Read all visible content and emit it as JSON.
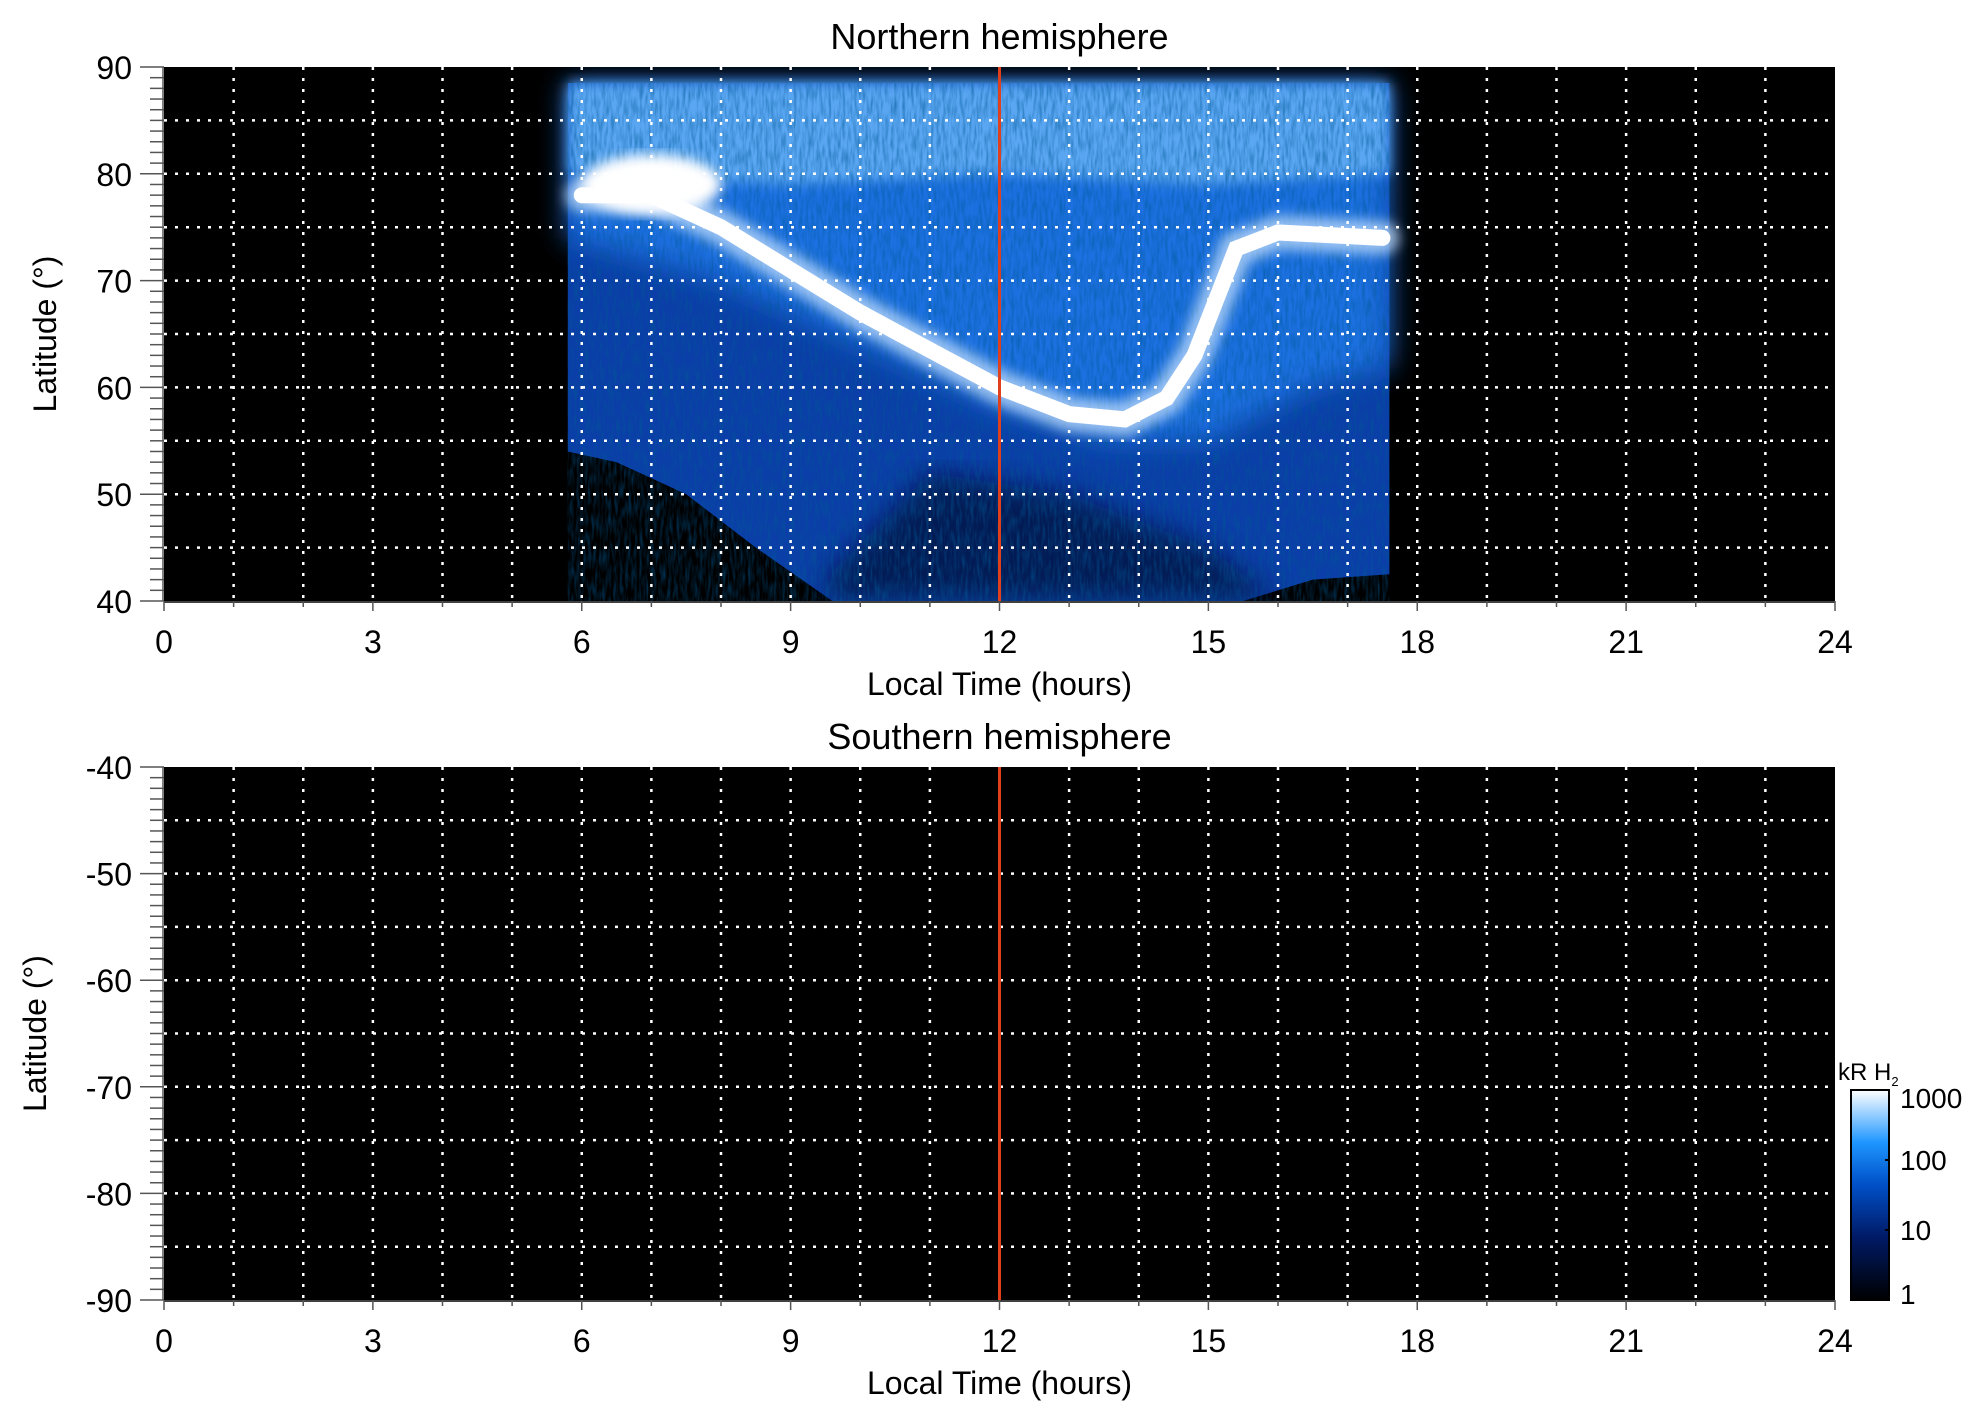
{
  "chart_data": [
    {
      "type": "heatmap",
      "title": "Northern hemisphere",
      "xlabel": "Local Time (hours)",
      "ylabel": "Latitude (°)",
      "xlim": [
        0,
        24
      ],
      "ylim": [
        40,
        90
      ],
      "xticks": [
        0,
        3,
        6,
        9,
        12,
        15,
        18,
        21,
        24
      ],
      "yticks": [
        40,
        50,
        60,
        70,
        80,
        90
      ],
      "grid": true,
      "marker_line_x": 12,
      "coverage_lt": [
        5.8,
        17.6
      ],
      "main_oval": [
        [
          6,
          78
        ],
        [
          7,
          78
        ],
        [
          8,
          75
        ],
        [
          9,
          71
        ],
        [
          10,
          67
        ],
        [
          11,
          63.5
        ],
        [
          12,
          60
        ],
        [
          13,
          57.5
        ],
        [
          13.8,
          57
        ],
        [
          14.4,
          59
        ],
        [
          14.8,
          63
        ],
        [
          15.1,
          68
        ],
        [
          15.4,
          73
        ],
        [
          16,
          74.5
        ],
        [
          17.5,
          74
        ]
      ],
      "has_data": true
    },
    {
      "type": "heatmap",
      "title": "Southern hemisphere",
      "xlabel": "Local Time (hours)",
      "ylabel": "Latitude (°)",
      "xlim": [
        0,
        24
      ],
      "ylim": [
        -90,
        -40
      ],
      "xticks": [
        0,
        3,
        6,
        9,
        12,
        15,
        18,
        21,
        24
      ],
      "yticks": [
        -40,
        -50,
        -60,
        -70,
        -80,
        -90
      ],
      "grid": true,
      "marker_line_x": 12,
      "has_data": false
    }
  ],
  "colorbar": {
    "label": "kR H",
    "label_sub": "2",
    "scale": "log",
    "range": [
      1,
      1000
    ],
    "ticks": [
      "1",
      "10",
      "100",
      "1000"
    ],
    "colors": [
      "#000000",
      "#001a66",
      "#0050c8",
      "#1e96ff",
      "#ffffff"
    ]
  },
  "colors": {
    "marker_line": "#e0401c",
    "grid": "#ffffff",
    "background": "#000000"
  }
}
